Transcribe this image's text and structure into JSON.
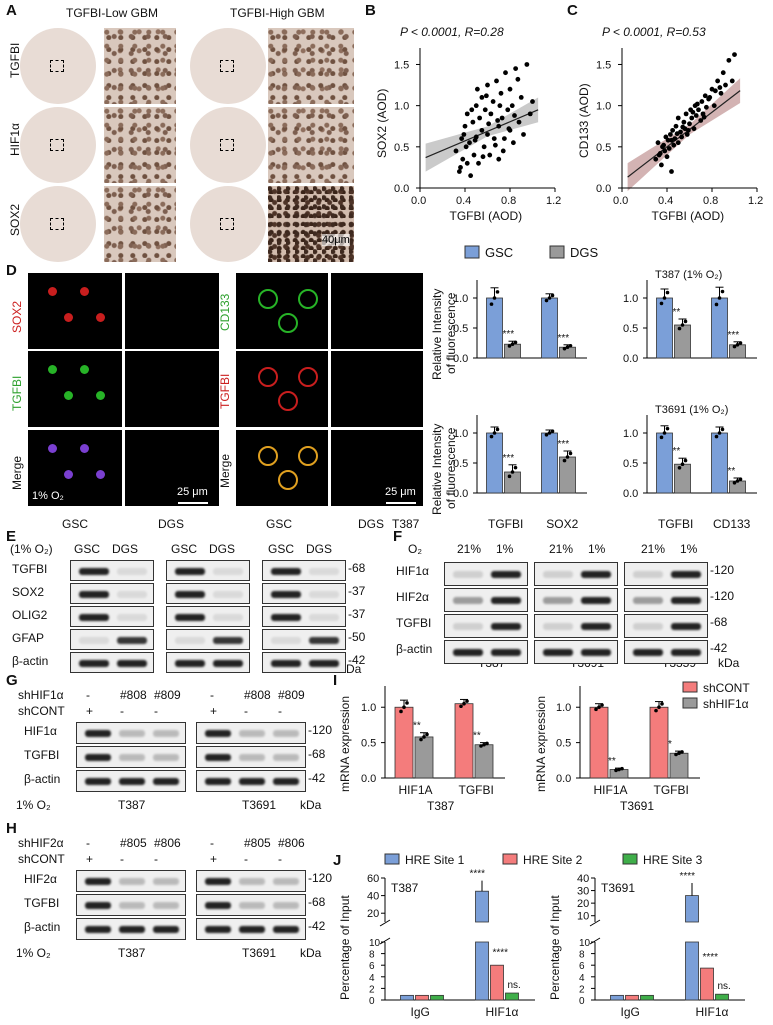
{
  "panels": {
    "A": {
      "label": "A",
      "col_titles": [
        "TGFBI-Low GBM",
        "TGFBI-High GBM"
      ],
      "row_labels": [
        "TGFBI",
        "HIF1α",
        "SOX2"
      ],
      "scale": "40μm"
    },
    "B": {
      "label": "B",
      "stat": "P < 0.0001, R=0.28"
    },
    "C": {
      "label": "C",
      "stat": "P < 0.0001, R=0.53"
    },
    "D": {
      "label": "D",
      "left_rows": [
        "SOX2",
        "TGFBI",
        "Merge"
      ],
      "right_rows": [
        "CD133",
        "TGFBI",
        "Merge"
      ],
      "cols": [
        "GSC",
        "DGS"
      ],
      "note": "1% O₂",
      "scale": "25 μm",
      "cell_line": "T387"
    },
    "E": {
      "label": "E",
      "header": "(1% O₂)",
      "rows": [
        "TGFBI",
        "SOX2",
        "OLIG2",
        "GFAP",
        "β-actin"
      ],
      "lanes": [
        "GSC",
        "DGS"
      ],
      "lines": [
        "T387",
        "T3691",
        "T3359"
      ],
      "kda": [
        "68",
        "37",
        "37",
        "50",
        "42"
      ],
      "kda_unit": "kDa"
    },
    "F": {
      "label": "F",
      "o2": "O₂",
      "conds": [
        "21%",
        "1%"
      ],
      "rows": [
        "HIF1α",
        "HIF2α",
        "TGFBI",
        "β-actin"
      ],
      "lines": [
        "T387",
        "T3691",
        "T3359"
      ],
      "kda": [
        "120",
        "120",
        "68",
        "42"
      ],
      "kda_unit": "kDa"
    },
    "G": {
      "label": "G",
      "sh_label": "shHIF1α",
      "shcont": "shCONT",
      "lanes_top": [
        "-",
        "#808",
        "#809"
      ],
      "lanes_bottom": [
        "+",
        "-",
        "-"
      ],
      "rows": [
        "HIF1α",
        "TGFBI",
        "β-actin"
      ],
      "kda": [
        "120",
        "68",
        "42"
      ],
      "kda_unit": "kDa",
      "o2": "1% O₂",
      "lines": [
        "T387",
        "T3691"
      ]
    },
    "H": {
      "label": "H",
      "sh_label": "shHIF2α",
      "shcont": "shCONT",
      "lanes_top": [
        "-",
        "#805",
        "#806"
      ],
      "lanes_bottom": [
        "+",
        "-",
        "-"
      ],
      "rows": [
        "HIF2α",
        "TGFBI",
        "β-actin"
      ],
      "kda": [
        "120",
        "68",
        "42"
      ],
      "kda_unit": "kDa",
      "o2": "1% O₂",
      "lines": [
        "T387",
        "T3691"
      ]
    },
    "I": {
      "label": "I",
      "lines": [
        "T387",
        "T3691"
      ]
    },
    "J": {
      "label": "J",
      "lines": [
        "T387",
        "T3691"
      ]
    }
  },
  "chart_data": [
    {
      "id": "B",
      "type": "scatter",
      "xlabel": "TGFBI (AOD)",
      "ylabel": "SOX2  (AOD)",
      "xlim": [
        0,
        1.2
      ],
      "ylim": [
        0,
        1.7
      ],
      "xticks": [
        "0.0",
        "0.4",
        "0.8",
        "1.2"
      ],
      "yticks": [
        "0.0",
        "0.5",
        "1.0",
        "1.5"
      ],
      "fit": {
        "intercept": 0.34,
        "slope": 0.58
      },
      "x": [
        0.32,
        0.35,
        0.37,
        0.38,
        0.4,
        0.42,
        0.42,
        0.44,
        0.45,
        0.47,
        0.48,
        0.5,
        0.5,
        0.52,
        0.53,
        0.55,
        0.55,
        0.57,
        0.58,
        0.6,
        0.6,
        0.62,
        0.63,
        0.65,
        0.66,
        0.68,
        0.7,
        0.7,
        0.72,
        0.73,
        0.75,
        0.76,
        0.78,
        0.8,
        0.8,
        0.82,
        0.83,
        0.85,
        0.88,
        0.9,
        0.92,
        0.95,
        0.98,
        1.0,
        0.36,
        0.41,
        0.46,
        0.51,
        0.56,
        0.61,
        0.67,
        0.71,
        0.74,
        0.79,
        0.84,
        0.87,
        0.39,
        0.49,
        0.59,
        0.69
      ],
      "y": [
        0.45,
        0.2,
        0.6,
        0.35,
        0.75,
        0.3,
        0.9,
        0.55,
        0.15,
        0.8,
        0.4,
        1.0,
        0.62,
        0.3,
        0.85,
        0.7,
        1.1,
        0.5,
        0.95,
        0.65,
        1.25,
        0.4,
        0.9,
        1.05,
        0.6,
        1.3,
        0.75,
        0.35,
        1.15,
        0.85,
        0.6,
        1.4,
        0.95,
        1.2,
        0.7,
        1.0,
        0.55,
        1.45,
        0.8,
        1.1,
        0.65,
        1.5,
        0.9,
        1.05,
        0.25,
        0.5,
        0.95,
        1.2,
        0.38,
        0.78,
        0.52,
        1.0,
        0.45,
        0.72,
        0.88,
        1.32,
        0.65,
        0.58,
        1.12,
        0.82
      ]
    },
    {
      "id": "C",
      "type": "scatter",
      "xlabel": "TGFBI (AOD)",
      "ylabel": "CD133  (AOD)",
      "xlim": [
        0,
        1.2
      ],
      "ylim": [
        0,
        1.7
      ],
      "xticks": [
        "0.0",
        "0.4",
        "0.8",
        "1.2"
      ],
      "yticks": [
        "0.0",
        "0.5",
        "1.0",
        "1.5"
      ],
      "fit": {
        "intercept": 0.08,
        "slope": 1.05
      },
      "x": [
        0.3,
        0.32,
        0.34,
        0.35,
        0.36,
        0.38,
        0.39,
        0.4,
        0.41,
        0.42,
        0.43,
        0.44,
        0.45,
        0.46,
        0.47,
        0.48,
        0.5,
        0.5,
        0.52,
        0.53,
        0.55,
        0.56,
        0.57,
        0.58,
        0.6,
        0.61,
        0.62,
        0.64,
        0.65,
        0.66,
        0.68,
        0.7,
        0.71,
        0.72,
        0.74,
        0.75,
        0.78,
        0.8,
        0.82,
        0.85,
        0.88,
        0.9,
        0.92,
        0.95,
        0.98,
        1.0,
        0.33,
        0.37,
        0.44,
        0.49,
        0.54,
        0.59,
        0.63,
        0.67,
        0.73,
        0.77,
        0.83,
        0.87
      ],
      "y": [
        0.35,
        0.55,
        0.42,
        0.28,
        0.5,
        0.45,
        0.62,
        0.38,
        0.58,
        0.48,
        0.65,
        0.2,
        0.7,
        0.52,
        0.6,
        0.75,
        0.55,
        0.85,
        0.68,
        0.62,
        0.8,
        0.72,
        0.9,
        0.65,
        0.78,
        0.95,
        0.85,
        0.72,
        1.0,
        0.88,
        0.95,
        0.82,
        1.05,
        0.9,
        1.12,
        0.98,
        1.1,
        1.2,
        1.0,
        1.3,
        1.15,
        1.4,
        1.25,
        1.55,
        1.3,
        1.62,
        0.4,
        0.52,
        0.58,
        0.66,
        0.74,
        0.7,
        0.92,
        1.02,
        0.86,
        1.08,
        1.18,
        1.22
      ]
    },
    {
      "id": "D-top-left",
      "type": "bar",
      "ylabel": "Relative Intensity of fluorescence",
      "ylim": [
        0,
        1.3
      ],
      "yticks": [
        "0.0",
        "0.5",
        "1.0"
      ],
      "categories": [
        "SOX2",
        "TGFBI"
      ],
      "legend": [
        "GSC",
        "DGS"
      ],
      "series": [
        {
          "name": "GSC",
          "values": [
            1.0,
            1.0
          ],
          "err": [
            0.17,
            0.07
          ]
        },
        {
          "name": "DGS",
          "values": [
            0.23,
            0.18
          ],
          "err": [
            0.05,
            0.04
          ]
        }
      ],
      "sig": [
        "***",
        "***"
      ]
    },
    {
      "id": "D-top-right",
      "type": "bar",
      "title": "T387 (1% O₂)",
      "ylim": [
        0,
        1.3
      ],
      "yticks": [
        "0.0",
        "0.5",
        "1.0"
      ],
      "categories": [
        "TGFBI",
        "CD133"
      ],
      "series": [
        {
          "name": "GSC",
          "values": [
            1.0,
            1.0
          ],
          "err": [
            0.15,
            0.18
          ]
        },
        {
          "name": "DGS",
          "values": [
            0.55,
            0.22
          ],
          "err": [
            0.1,
            0.05
          ]
        }
      ],
      "sig": [
        "**",
        "***"
      ]
    },
    {
      "id": "D-bottom-left",
      "type": "bar",
      "ylabel": "Relative Intensity of fluorescence",
      "ylim": [
        0,
        1.3
      ],
      "yticks": [
        "0.0",
        "0.5",
        "1.0"
      ],
      "categories": [
        "TGFBI",
        "SOX2"
      ],
      "series": [
        {
          "name": "GSC",
          "values": [
            1.0,
            1.0
          ],
          "err": [
            0.1,
            0.05
          ]
        },
        {
          "name": "DGS",
          "values": [
            0.35,
            0.6
          ],
          "err": [
            0.12,
            0.1
          ]
        }
      ],
      "sig": [
        "***",
        "***"
      ]
    },
    {
      "id": "D-bottom-right",
      "type": "bar",
      "title": "T3691 (1% O₂)",
      "ylim": [
        0,
        1.3
      ],
      "yticks": [
        "0.0",
        "0.5",
        "1.0"
      ],
      "categories": [
        "TGFBI",
        "CD133"
      ],
      "series": [
        {
          "name": "GSC",
          "values": [
            1.0,
            1.0
          ],
          "err": [
            0.12,
            0.1
          ]
        },
        {
          "name": "DGS",
          "values": [
            0.48,
            0.2
          ],
          "err": [
            0.1,
            0.05
          ]
        }
      ],
      "sig": [
        "**",
        "**"
      ]
    },
    {
      "id": "I-T387",
      "type": "bar",
      "ylabel": "mRNA expression",
      "ylim": [
        0,
        1.3
      ],
      "yticks": [
        "0.0",
        "0.5",
        "1.0"
      ],
      "categories": [
        "HIF1A",
        "TGFBI"
      ],
      "series": [
        {
          "name": "shCONT",
          "values": [
            1.0,
            1.05
          ],
          "err": [
            0.1,
            0.06
          ]
        },
        {
          "name": "shHIF1α",
          "values": [
            0.58,
            0.47
          ],
          "err": [
            0.06,
            0.03
          ]
        }
      ],
      "sig": [
        "**",
        "**"
      ]
    },
    {
      "id": "I-T3691",
      "type": "bar",
      "ylabel": "mRNA expression",
      "ylim": [
        0,
        1.3
      ],
      "yticks": [
        "0.0",
        "0.5",
        "1.0"
      ],
      "categories": [
        "HIF1A",
        "TGFBI"
      ],
      "legend": [
        "shCONT",
        "shHIF1α"
      ],
      "series": [
        {
          "name": "shCONT",
          "values": [
            1.0,
            1.0
          ],
          "err": [
            0.05,
            0.08
          ]
        },
        {
          "name": "shHIF1α",
          "values": [
            0.12,
            0.35
          ],
          "err": [
            0.02,
            0.03
          ]
        }
      ],
      "sig": [
        "**",
        "*"
      ]
    },
    {
      "id": "J-T387",
      "type": "bar",
      "ylabel": "Percentage of Input",
      "yticks_top": [
        "20",
        "40",
        "60"
      ],
      "yticks_bottom": [
        "0",
        "2",
        "4",
        "6",
        "8",
        "10"
      ],
      "categories": [
        "IgG",
        "HIF1α"
      ],
      "legend": [
        "HRE Site 1",
        "HRE Site 2",
        "HRE Site 3"
      ],
      "series": [
        {
          "name": "HRE Site 1",
          "values": [
            0.8,
            45
          ],
          "err": [
            0.1,
            12
          ]
        },
        {
          "name": "HRE Site 2",
          "values": [
            0.8,
            6
          ],
          "err": [
            0.1,
            1
          ]
        },
        {
          "name": "HRE Site 3",
          "values": [
            0.8,
            1.2
          ],
          "err": [
            0.1,
            0.2
          ]
        }
      ],
      "sig": [
        "****",
        "****",
        "ns."
      ]
    },
    {
      "id": "J-T3691",
      "type": "bar",
      "ylabel": "Percentage of Input",
      "yticks_top": [
        "10",
        "20",
        "30",
        "40"
      ],
      "yticks_bottom": [
        "0",
        "2",
        "4",
        "6",
        "8",
        "10"
      ],
      "categories": [
        "IgG",
        "HIF1α"
      ],
      "series": [
        {
          "name": "HRE Site 1",
          "values": [
            0.8,
            26
          ],
          "err": [
            0.1,
            10
          ]
        },
        {
          "name": "HRE Site 2",
          "values": [
            0.8,
            5.5
          ],
          "err": [
            0.1,
            0.7
          ]
        },
        {
          "name": "HRE Site 3",
          "values": [
            0.8,
            1.0
          ],
          "err": [
            0.1,
            0.2
          ]
        }
      ],
      "sig": [
        "****",
        "****",
        "ns."
      ]
    }
  ],
  "colors": {
    "gsc": "#7b9fd8",
    "dgs": "#9a9a9a",
    "shcont": "#f47c7c",
    "shhif": "#9a9a9a",
    "hre1": "#7b9fd8",
    "hre2": "#f47c7c",
    "hre3": "#3fae49",
    "sox2_text": "#cc2020",
    "tgfbi_green": "#2ca02c",
    "cd133_green": "#2ca02c",
    "tgfbi_red": "#cc2020"
  }
}
